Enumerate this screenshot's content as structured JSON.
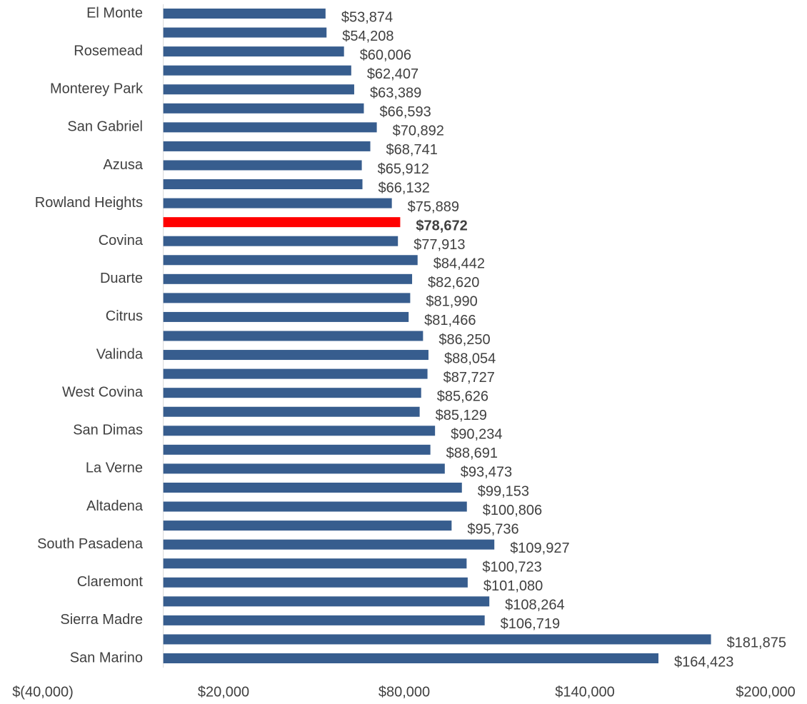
{
  "chart_data": {
    "type": "barh",
    "categories": [
      "El Monte",
      null,
      "Rosemead",
      null,
      "Monterey Park",
      null,
      "San Gabriel",
      null,
      "Azusa",
      null,
      "Rowland Heights",
      null,
      "Covina",
      null,
      "Duarte",
      null,
      "Citrus",
      null,
      "Valinda",
      null,
      "West Covina",
      null,
      "San Dimas",
      null,
      "La Verne",
      null,
      "Altadena",
      null,
      "South Pasadena",
      null,
      "Claremont",
      null,
      "Sierra Madre",
      null,
      "San Marino"
    ],
    "values": [
      53874,
      54208,
      60006,
      62407,
      63389,
      66593,
      70892,
      68741,
      65912,
      66132,
      75889,
      78672,
      77913,
      84442,
      82620,
      81990,
      81466,
      86250,
      88054,
      87727,
      85626,
      85129,
      90234,
      88691,
      93473,
      99153,
      100806,
      95736,
      109927,
      100723,
      101080,
      108264,
      106719,
      181875,
      164423
    ],
    "value_labels": [
      "$53,874",
      "$54,208",
      "$60,006",
      "$62,407",
      "$63,389",
      "$66,593",
      "$70,892",
      "$68,741",
      "$65,912",
      "$66,132",
      "$75,889",
      "$78,672",
      "$77,913",
      "$84,442",
      "$82,620",
      "$81,990",
      "$81,466",
      "$86,250",
      "$88,054",
      "$87,727",
      "$85,626",
      "$85,129",
      "$90,234",
      "$88,691",
      "$93,473",
      "$99,153",
      "$100,806",
      "$95,736",
      "$109,927",
      "$100,723",
      "$101,080",
      "$108,264",
      "$106,719",
      "$181,875",
      "$164,423"
    ],
    "color": "#375d8e",
    "highlight": {
      "index": 11,
      "color": "#ff0000"
    },
    "xlim": [
      -40000,
      200000
    ],
    "xticks": [
      {
        "value": -40000,
        "label": "$(40,000)"
      },
      {
        "value": 20000,
        "label": "$20,000"
      },
      {
        "value": 80000,
        "label": "$80,000"
      },
      {
        "value": 140000,
        "label": "$140,000"
      },
      {
        "value": 200000,
        "label": "$200,000"
      }
    ],
    "grid": false
  }
}
